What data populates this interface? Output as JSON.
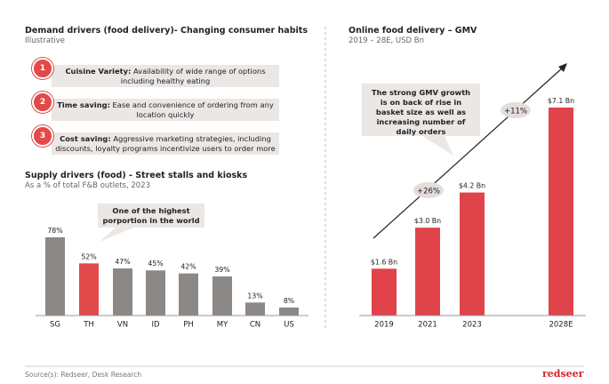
{
  "header": {
    "title": "Demand drivers (food delivery)- Changing consumer habits",
    "subtitle": "Illustrative"
  },
  "drivers": [
    {
      "number": "1",
      "label": "Cuisine Variety:",
      "text": "Availability of wide range of options including healthy eating"
    },
    {
      "number": "2",
      "label": "Time saving:",
      "text": "Ease and convenience of ordering from any location quickly"
    },
    {
      "number": "3",
      "label": "Cost saving:",
      "text": "Aggressive marketing strategies, including discounts, loyalty programs incentivize users to order more"
    }
  ],
  "chart_data": [
    {
      "type": "bar",
      "title": "Supply drivers (food) - Street stalls and kiosks",
      "subtitle": "As a % of total F&B outlets, 2023",
      "categories": [
        "SG",
        "TH",
        "VN",
        "ID",
        "PH",
        "MY",
        "CN",
        "US"
      ],
      "values": [
        78,
        52,
        47,
        45,
        42,
        39,
        13,
        8
      ],
      "value_labels": [
        "78%",
        "52%",
        "47%",
        "45%",
        "42%",
        "39%",
        "13%",
        "8%"
      ],
      "colors": [
        "#8c8886",
        "#e04a4a",
        "#8c8886",
        "#8c8886",
        "#8c8886",
        "#8c8886",
        "#8c8886",
        "#8c8886"
      ],
      "annotation": "One of the highest porportion in the world"
    },
    {
      "type": "bar",
      "title": "Online food delivery – GMV",
      "subtitle": "2019 – 28E, USD Bn",
      "categories": [
        "2019",
        "2021",
        "2023",
        "2028E"
      ],
      "values": [
        1.6,
        3.0,
        4.2,
        7.1
      ],
      "value_labels": [
        "$1.6 Bn",
        "$3.0 Bn",
        "$4.2 Bn",
        "$7.1 Bn"
      ],
      "color": "#e0434a",
      "annotations": [
        "+26%",
        "+11%"
      ],
      "callout": "The strong GMV growth is on back of rise in basket size as well as increasing number of daily orders"
    }
  ],
  "footer": {
    "source": "Source(s): Redseer, Desk Research",
    "logo": "redseer"
  }
}
